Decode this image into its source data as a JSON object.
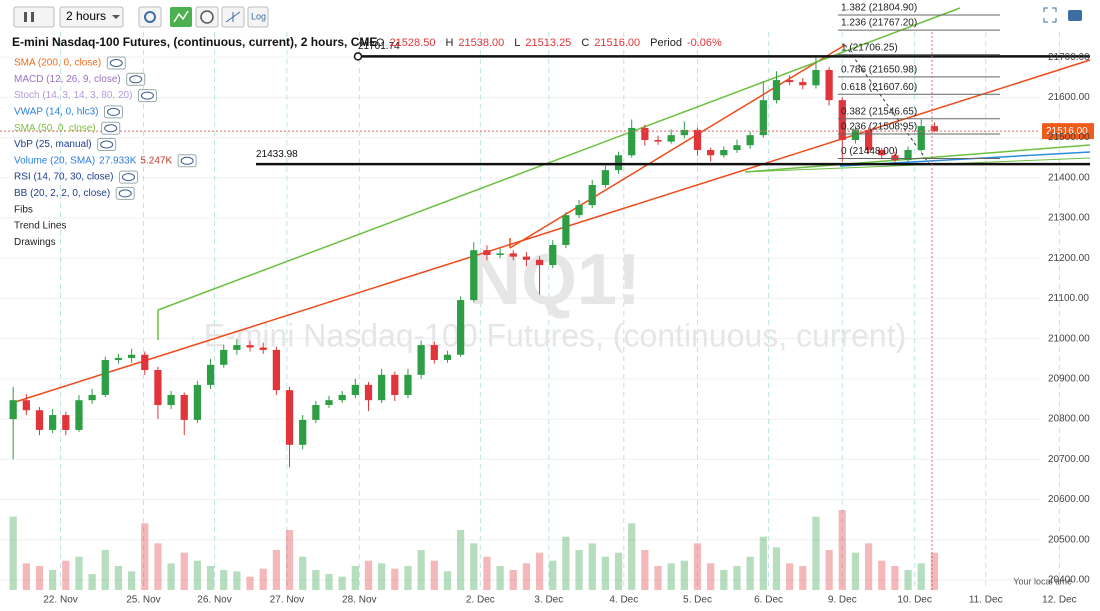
{
  "chart_data": {
    "type": "candlestick",
    "toolbar": {
      "interval": "2 hours",
      "log": "Log"
    },
    "title": "E-mini Nasdaq-100 Futures, (continuous, current), 2 hours, CME",
    "ohlc_legend": [
      {
        "key": "O",
        "text": "21528.50"
      },
      {
        "key": "H",
        "text": "21538.00"
      },
      {
        "key": "L",
        "text": "21513.25"
      },
      {
        "key": "C",
        "text": "21516.00"
      },
      {
        "key": "Period",
        "text": "-0.06%"
      }
    ],
    "watermark": {
      "symbol": "NQ1!",
      "name": "E-mini Nasdaq-100 Futures, (continuous, current)"
    },
    "indicators": [
      {
        "name": "SMA (200, 0, close)",
        "color": "#f06a1a"
      },
      {
        "name": "MACD (12, 26, 9, close)",
        "color": "#9b6fc0"
      },
      {
        "name": "Stoch (14, 3, 14, 3, 80, 20)",
        "color": "#b29ad6"
      },
      {
        "name": "VWAP (14, 0, hlc3)",
        "color": "#2a7de1"
      },
      {
        "name": "SMA (50, 0, close)",
        "color": "#7cc043"
      },
      {
        "name": "VbP (25, manual)",
        "color": "#1f3f8f"
      },
      {
        "name": "Volume (20, SMA)",
        "color": "#2a7de1",
        "readings": [
          "27.933K",
          "5.247K"
        ]
      },
      {
        "name": "RSI (14, 70, 30, close)",
        "color": "#1f3f8f"
      },
      {
        "name": "BB (20, 2, 2, 0, close)",
        "color": "#1f3f8f"
      },
      {
        "name": "Fibs",
        "color": "#222"
      },
      {
        "name": "Trend Lines",
        "color": "#222"
      },
      {
        "name": "Drawings",
        "color": "#222"
      }
    ],
    "footer": "Your local time",
    "xlim": [
      -1,
      80
    ],
    "xticks": [
      {
        "value": 3.6,
        "label": "22. Nov"
      },
      {
        "value": 9.9,
        "label": "25. Nov"
      },
      {
        "value": 15.3,
        "label": "26. Nov"
      },
      {
        "value": 20.8,
        "label": "27. Nov"
      },
      {
        "value": 26.3,
        "label": "28. Nov"
      },
      {
        "value": 35.5,
        "label": "2. Dec"
      },
      {
        "value": 40.7,
        "label": "3. Dec"
      },
      {
        "value": 46.4,
        "label": "4. Dec"
      },
      {
        "value": 52.0,
        "label": "5. Dec"
      },
      {
        "value": 57.4,
        "label": "6. Dec"
      },
      {
        "value": 63.0,
        "label": "9. Dec"
      },
      {
        "value": 68.5,
        "label": "10. Dec"
      },
      {
        "value": 73.9,
        "label": "11. Dec"
      },
      {
        "value": 79.5,
        "label": "12. Dec"
      }
    ],
    "ylim": [
      20380,
      21760
    ],
    "yticks": [
      {
        "value": 20400,
        "label": "20400.00"
      },
      {
        "value": 20500,
        "label": "20500.00"
      },
      {
        "value": 20600,
        "label": "20600.00"
      },
      {
        "value": 20700,
        "label": "20700.00"
      },
      {
        "value": 20800,
        "label": "20800.00"
      },
      {
        "value": 20900,
        "label": "20900.00"
      },
      {
        "value": 21000,
        "label": "21000.00"
      },
      {
        "value": 21100,
        "label": "21100.00"
      },
      {
        "value": 21200,
        "label": "21200.00"
      },
      {
        "value": 21300,
        "label": "21300.00"
      },
      {
        "value": 21400,
        "label": "21400.00"
      },
      {
        "value": 21500,
        "label": "21500.00"
      },
      {
        "value": 21600,
        "label": "21600.00"
      },
      {
        "value": 21700,
        "label": "21700.00"
      }
    ],
    "up_color": "#2e9e45",
    "down_color": "#e0353a",
    "open": [
      20800,
      20847,
      20822,
      20773,
      20810,
      20773,
      20847,
      20860,
      20947,
      20952,
      20960,
      20922,
      20835,
      20860,
      20798,
      20885,
      20935,
      20972,
      20984,
      20978,
      20972,
      20872,
      20736,
      20798,
      20835,
      20847,
      20860,
      20885,
      20847,
      20910,
      20860,
      20910,
      20984,
      20947,
      20960,
      21096,
      21220,
      21208,
      21212,
      21204,
      21196,
      21183,
      21233,
      21307,
      21332,
      21382,
      21419,
      21456,
      21524,
      21494,
      21490,
      21506,
      21519,
      21469,
      21456,
      21469,
      21481,
      21506,
      21593,
      21643,
      21638,
      21630,
      21668,
      21593,
      21494,
      21519,
      21469,
      21456,
      21444,
      21469,
      21528.5
    ],
    "high": [
      20880,
      20862,
      20830,
      20825,
      20818,
      20860,
      20875,
      20955,
      20962,
      20975,
      20968,
      20930,
      20870,
      20866,
      20895,
      20950,
      20985,
      21000,
      20995,
      20990,
      20980,
      20880,
      20810,
      20845,
      20858,
      20870,
      20900,
      20892,
      20925,
      20918,
      20925,
      20995,
      20992,
      20970,
      21105,
      21240,
      21232,
      21225,
      21220,
      21215,
      21205,
      21245,
      21315,
      21345,
      21395,
      21430,
      21465,
      21545,
      21532,
      21505,
      21520,
      21540,
      21525,
      21475,
      21478,
      21495,
      21515,
      21640,
      21665,
      21655,
      21648,
      21700,
      21675,
      21600,
      21530,
      21525,
      21475,
      21465,
      21478,
      21545,
      21538
    ],
    "low": [
      20700,
      20810,
      20760,
      20765,
      20760,
      20768,
      20838,
      20855,
      20938,
      20940,
      20910,
      20800,
      20825,
      20760,
      20790,
      20875,
      20928,
      20960,
      20968,
      20962,
      20860,
      20680,
      20725,
      20790,
      20828,
      20840,
      20852,
      20820,
      20840,
      20845,
      20852,
      20900,
      20938,
      20940,
      20955,
      21090,
      21195,
      21200,
      21195,
      21180,
      21110,
      21175,
      21225,
      21300,
      21325,
      21375,
      21410,
      21450,
      21480,
      21482,
      21485,
      21498,
      21455,
      21440,
      21450,
      21462,
      21472,
      21500,
      21585,
      21630,
      21620,
      21622,
      21580,
      21440,
      21485,
      21460,
      21448,
      21438,
      21440,
      21465,
      21513.25
    ],
    "close": [
      20847,
      20822,
      20773,
      20810,
      20773,
      20847,
      20860,
      20947,
      20952,
      20960,
      20922,
      20835,
      20860,
      20798,
      20885,
      20935,
      20972,
      20984,
      20978,
      20972,
      20872,
      20736,
      20798,
      20835,
      20847,
      20860,
      20885,
      20847,
      20910,
      20860,
      20910,
      20984,
      20947,
      20960,
      21096,
      21220,
      21208,
      21212,
      21204,
      21196,
      21183,
      21233,
      21307,
      21332,
      21382,
      21419,
      21456,
      21524,
      21494,
      21490,
      21506,
      21519,
      21469,
      21456,
      21469,
      21481,
      21506,
      21593,
      21643,
      21638,
      21630,
      21668,
      21593,
      21494,
      21519,
      21469,
      21456,
      21444,
      21469,
      21528.5,
      21516
    ],
    "volume": {
      "vlim": [
        0,
        75
      ],
      "values": [
        55,
        20,
        18,
        15,
        22,
        25,
        12,
        30,
        18,
        14,
        50,
        35,
        20,
        28,
        22,
        18,
        15,
        14,
        10,
        16,
        30,
        45,
        25,
        15,
        12,
        10,
        18,
        22,
        20,
        16,
        18,
        30,
        22,
        14,
        45,
        35,
        25,
        18,
        15,
        20,
        28,
        22,
        40,
        30,
        35,
        25,
        28,
        50,
        30,
        18,
        20,
        22,
        35,
        20,
        15,
        18,
        25,
        40,
        32,
        20,
        18,
        55,
        30,
        60,
        28,
        35,
        22,
        18,
        15,
        20,
        27.933
      ]
    },
    "last_price": {
      "value": 21516,
      "label": "21516.00"
    },
    "levels": [
      21701.74,
      21433.98
    ],
    "fibs": [
      {
        "value": 21804.9,
        "label": "1.382 (21804.90)"
      },
      {
        "value": 21767.2,
        "label": "1.236 (21767.20)"
      },
      {
        "value": 21706.25,
        "label": "1 (21706.25)"
      },
      {
        "value": 21650.98,
        "label": "0.786 (21650.98)"
      },
      {
        "value": 21607.6,
        "label": "0.618 (21607.60)"
      },
      {
        "value": 21546.65,
        "label": "0.382 (21546.65)"
      },
      {
        "value": 21508.95,
        "label": "0.236 (21508.95)"
      },
      {
        "value": 21448,
        "label": "0 (21448.00)"
      }
    ]
  }
}
